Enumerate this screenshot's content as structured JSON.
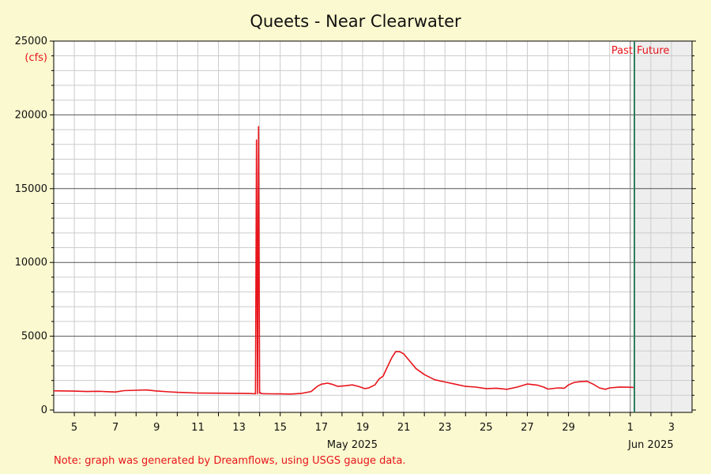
{
  "chart_data": {
    "type": "line",
    "title": "Queets - Near Clearwater",
    "y_unit_label": "(cfs)",
    "ylim": [
      0,
      25000
    ],
    "y_ticks": [
      0,
      5000,
      10000,
      15000,
      20000,
      25000
    ],
    "x_range_days": [
      "2025-05-04",
      "2025-06-04"
    ],
    "x_tick_labels": [
      {
        "day": 5,
        "label": "5"
      },
      {
        "day": 7,
        "label": "7"
      },
      {
        "day": 9,
        "label": "9"
      },
      {
        "day": 11,
        "label": "11"
      },
      {
        "day": 13,
        "label": "13"
      },
      {
        "day": 15,
        "label": "15"
      },
      {
        "day": 17,
        "label": "17"
      },
      {
        "day": 19,
        "label": "19"
      },
      {
        "day": 21,
        "label": "21"
      },
      {
        "day": 23,
        "label": "23"
      },
      {
        "day": 25,
        "label": "25"
      },
      {
        "day": 27,
        "label": "27"
      },
      {
        "day": 29,
        "label": "29"
      },
      {
        "day": 32,
        "label": "1"
      },
      {
        "day": 34,
        "label": "3"
      }
    ],
    "month_labels": [
      {
        "day": 18.5,
        "label": "May 2025"
      },
      {
        "day": 33,
        "label": "Jun 2025"
      }
    ],
    "grid": true,
    "now_marker_day": 32.2,
    "past_label": "Past",
    "future_label": "Future",
    "line_color": "#e8141b",
    "now_line_color": "#2e7d5b",
    "future_shade_color": "#eeeeee",
    "background_color": "#fbf9cf",
    "series": [
      {
        "x": [
          4.0,
          5.0,
          5.6,
          6.2,
          6.6,
          7.0,
          7.4,
          8.0,
          8.5,
          9.0,
          9.6,
          10.0,
          11.0,
          12.0,
          13.0,
          13.5,
          13.8,
          13.85,
          13.9,
          13.95,
          14.0,
          14.02,
          14.05,
          14.1,
          14.15,
          14.5,
          15.0,
          15.5,
          16.0,
          16.5,
          16.8,
          17.0,
          17.3,
          17.5,
          17.8,
          18.2,
          18.5,
          18.8,
          19.1,
          19.3,
          19.6,
          19.8,
          20.0,
          20.2,
          20.4,
          20.6,
          20.8,
          21.0,
          21.3,
          21.6,
          22.0,
          22.5,
          23.0,
          23.5,
          24.0,
          24.5,
          25.0,
          25.5,
          26.0,
          26.5,
          27.0,
          27.5,
          27.8,
          28.0,
          28.5,
          28.8,
          29.0,
          29.3,
          29.6,
          29.9,
          30.2,
          30.5,
          30.8,
          31.0,
          31.5,
          32.0,
          32.2
        ],
        "y": [
          1300,
          1280,
          1250,
          1270,
          1240,
          1220,
          1310,
          1340,
          1360,
          1290,
          1230,
          1200,
          1150,
          1140,
          1130,
          1120,
          1100,
          18300,
          1100,
          19200,
          1150,
          1200,
          1130,
          1120,
          1110,
          1100,
          1090,
          1080,
          1120,
          1250,
          1600,
          1750,
          1820,
          1750,
          1600,
          1650,
          1700,
          1600,
          1450,
          1500,
          1700,
          2100,
          2300,
          2900,
          3500,
          3950,
          3950,
          3800,
          3300,
          2800,
          2400,
          2050,
          1900,
          1750,
          1600,
          1550,
          1450,
          1480,
          1400,
          1550,
          1760,
          1680,
          1550,
          1420,
          1500,
          1480,
          1700,
          1880,
          1920,
          1950,
          1750,
          1500,
          1400,
          1500,
          1560,
          1540,
          1520
        ]
      }
    ]
  },
  "footer_note": "Note: graph was generated by Dreamflows, using USGS gauge data."
}
